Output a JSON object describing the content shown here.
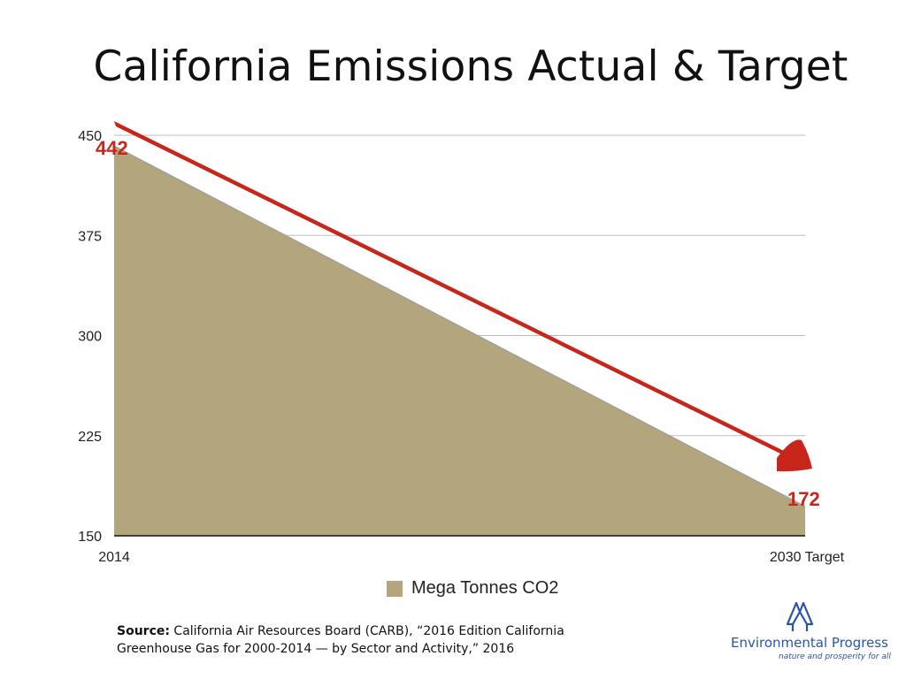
{
  "title": "California Emissions Actual & Target",
  "chart_data": {
    "type": "area",
    "title": "California Emissions Actual & Target",
    "categories": [
      "2014",
      "2030 Target"
    ],
    "series": [
      {
        "name": "Mega Tonnes CO2",
        "values": [
          442,
          172
        ],
        "color": "#b3a57c"
      }
    ],
    "data_labels": [
      "442",
      "172"
    ],
    "yticks": [
      "450",
      "375",
      "300",
      "225",
      "150"
    ],
    "ylim": [
      150,
      450
    ],
    "grid": true,
    "legend_position": "bottom",
    "arrow_color": "#c8261b",
    "label_color": "#c8261b"
  },
  "source": {
    "label": "Source:",
    "text": "California Air Resources Board (CARB), “2016 Edition California Greenhouse Gas for 2000-2014 — by Sector and Activity,” 2016"
  },
  "logo": {
    "name": "Environmental Progress",
    "tagline": "nature and prosperity for all",
    "icon": "trees-icon",
    "color": "#2a55a5"
  }
}
